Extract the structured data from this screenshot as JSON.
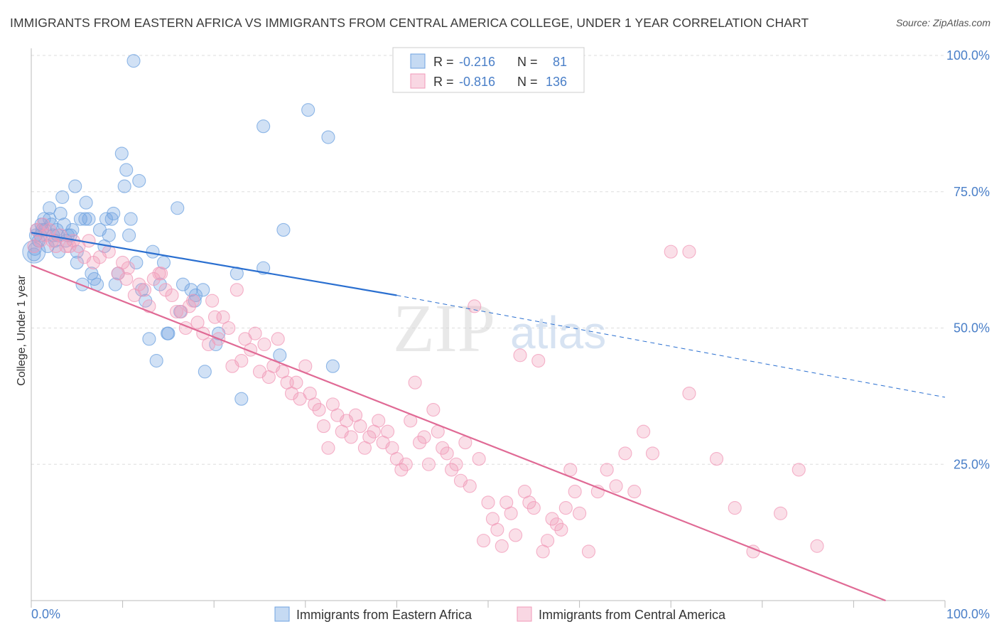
{
  "title": "IMMIGRANTS FROM EASTERN AFRICA VS IMMIGRANTS FROM CENTRAL AMERICA COLLEGE, UNDER 1 YEAR CORRELATION CHART",
  "source": "Source: ZipAtlas.com",
  "watermark": {
    "zip": "ZIP",
    "atlas": "atlas"
  },
  "colors": {
    "blue": "#6fa3e0",
    "blue_line": "#2a6fd0",
    "pink": "#f19ab8",
    "pink_line": "#e06a95",
    "tick_text": "#4a7fc8",
    "grid": "#dddddd"
  },
  "chart_data": {
    "type": "scatter",
    "xlabel": "",
    "ylabel": "College, Under 1 year",
    "xlim": [
      0,
      100
    ],
    "ylim": [
      0,
      100
    ],
    "x_tick_labels": [
      "0.0%",
      "100.0%"
    ],
    "y_ticks": [
      25,
      50,
      75,
      100
    ],
    "y_tick_labels": [
      "25.0%",
      "50.0%",
      "75.0%",
      "100.0%"
    ],
    "grid": true,
    "legend_position": "top-center",
    "legend": [
      {
        "r_label": "R =",
        "r": "-0.216",
        "n_label": "N =",
        "n": "81"
      },
      {
        "r_label": "R =",
        "r": "-0.816",
        "n_label": "N =",
        "n": "136"
      }
    ],
    "series": [
      {
        "name": "Immigrants from Eastern Africa",
        "color": "#6fa3e0",
        "regression": {
          "x0": 0,
          "y0": 67.5,
          "x1": 40,
          "y1": 56.0,
          "dashed_to_x": 100,
          "dashed_to_y": 37.3
        },
        "points": [
          [
            0.3,
            63.5
          ],
          [
            0.4,
            64.5
          ],
          [
            0.5,
            67
          ],
          [
            0.6,
            68
          ],
          [
            0.8,
            66
          ],
          [
            1,
            67
          ],
          [
            1.2,
            68
          ],
          [
            1.4,
            70
          ],
          [
            1.5,
            68
          ],
          [
            1.8,
            65
          ],
          [
            2,
            70
          ],
          [
            2,
            72
          ],
          [
            2.2,
            69
          ],
          [
            2.4,
            67
          ],
          [
            2.6,
            66
          ],
          [
            2.8,
            68
          ],
          [
            3,
            64
          ],
          [
            3.2,
            71
          ],
          [
            3.4,
            74
          ],
          [
            3.6,
            69
          ],
          [
            3.8,
            66
          ],
          [
            4,
            67
          ],
          [
            4.3,
            67
          ],
          [
            4.5,
            68
          ],
          [
            4.8,
            76
          ],
          [
            5,
            64
          ],
          [
            5,
            62
          ],
          [
            5.4,
            70
          ],
          [
            5.6,
            58
          ],
          [
            5.9,
            70
          ],
          [
            6,
            73
          ],
          [
            6.3,
            70
          ],
          [
            6.6,
            60
          ],
          [
            6.9,
            59
          ],
          [
            7.2,
            58
          ],
          [
            7.5,
            68
          ],
          [
            8,
            65
          ],
          [
            8.2,
            70
          ],
          [
            8.5,
            67
          ],
          [
            8.8,
            70
          ],
          [
            9,
            71
          ],
          [
            9.2,
            58
          ],
          [
            9.5,
            60
          ],
          [
            9.9,
            82
          ],
          [
            10.2,
            76
          ],
          [
            10.4,
            79
          ],
          [
            10.7,
            67
          ],
          [
            10.9,
            70
          ],
          [
            11.2,
            99
          ],
          [
            11.5,
            62
          ],
          [
            11.8,
            77
          ],
          [
            12.1,
            57
          ],
          [
            12.5,
            55
          ],
          [
            12.9,
            48
          ],
          [
            13.3,
            64
          ],
          [
            13.7,
            44
          ],
          [
            14.1,
            58
          ],
          [
            14.5,
            62
          ],
          [
            14.9,
            49
          ],
          [
            15,
            49
          ],
          [
            16,
            72
          ],
          [
            16.3,
            53
          ],
          [
            16.6,
            58
          ],
          [
            17.5,
            57
          ],
          [
            17.9,
            55
          ],
          [
            18,
            56
          ],
          [
            18.8,
            57
          ],
          [
            19,
            42
          ],
          [
            20.2,
            47
          ],
          [
            20.5,
            49
          ],
          [
            22.5,
            60
          ],
          [
            23,
            37
          ],
          [
            25.4,
            61
          ],
          [
            25.4,
            87
          ],
          [
            27.2,
            45
          ],
          [
            27.6,
            68
          ],
          [
            30.3,
            90
          ],
          [
            32.5,
            85
          ],
          [
            33,
            43
          ],
          [
            1.1,
            69
          ],
          [
            2.9,
            67
          ]
        ]
      },
      {
        "name": "Immigrants from Central America",
        "color": "#f19ab8",
        "regression": {
          "x0": 0,
          "y0": 61.5,
          "x1": 93.5,
          "y1": 0
        },
        "points": [
          [
            0.3,
            65
          ],
          [
            0.6,
            68
          ],
          [
            1,
            66
          ],
          [
            1.3,
            69
          ],
          [
            1.6,
            67
          ],
          [
            2,
            68
          ],
          [
            2.3,
            66
          ],
          [
            2.7,
            65
          ],
          [
            3.2,
            67
          ],
          [
            3.8,
            65
          ],
          [
            4.2,
            65
          ],
          [
            4.6,
            66
          ],
          [
            5.2,
            65
          ],
          [
            5.8,
            63
          ],
          [
            6.3,
            66
          ],
          [
            6.8,
            62
          ],
          [
            7.5,
            63
          ],
          [
            8.5,
            64
          ],
          [
            9.5,
            60
          ],
          [
            10,
            62
          ],
          [
            10.4,
            59
          ],
          [
            10.6,
            61
          ],
          [
            11.3,
            56
          ],
          [
            11.8,
            58
          ],
          [
            12.4,
            57
          ],
          [
            12.9,
            54
          ],
          [
            13.4,
            59
          ],
          [
            14,
            60
          ],
          [
            14.2,
            60
          ],
          [
            14.7,
            57
          ],
          [
            15.4,
            56
          ],
          [
            15.9,
            53
          ],
          [
            16.4,
            53
          ],
          [
            16.9,
            50
          ],
          [
            17.3,
            54
          ],
          [
            17.7,
            55
          ],
          [
            18.2,
            51
          ],
          [
            18.8,
            49
          ],
          [
            19.4,
            47
          ],
          [
            19.8,
            55
          ],
          [
            20.1,
            52
          ],
          [
            20.5,
            48
          ],
          [
            21,
            52
          ],
          [
            21.6,
            50
          ],
          [
            22,
            43
          ],
          [
            22.5,
            57
          ],
          [
            23,
            44
          ],
          [
            23.4,
            48
          ],
          [
            24,
            46
          ],
          [
            24.5,
            49
          ],
          [
            25,
            42
          ],
          [
            25.5,
            47
          ],
          [
            26,
            41
          ],
          [
            26.5,
            43
          ],
          [
            27,
            48
          ],
          [
            27.5,
            42
          ],
          [
            28,
            40
          ],
          [
            28.5,
            38
          ],
          [
            29,
            40
          ],
          [
            29.4,
            37
          ],
          [
            30,
            43
          ],
          [
            30.5,
            38
          ],
          [
            31,
            36
          ],
          [
            31.5,
            35
          ],
          [
            32,
            32
          ],
          [
            32.5,
            28
          ],
          [
            33,
            36
          ],
          [
            33.5,
            34
          ],
          [
            34,
            31
          ],
          [
            34.5,
            33
          ],
          [
            35,
            30
          ],
          [
            35.5,
            34
          ],
          [
            36,
            32
          ],
          [
            36.5,
            28
          ],
          [
            37,
            30
          ],
          [
            37.5,
            31
          ],
          [
            38,
            33
          ],
          [
            38.5,
            29
          ],
          [
            39,
            31
          ],
          [
            39.5,
            28
          ],
          [
            40,
            26
          ],
          [
            40.5,
            24
          ],
          [
            41,
            25
          ],
          [
            41.5,
            33
          ],
          [
            42,
            40
          ],
          [
            42.5,
            29
          ],
          [
            43,
            30
          ],
          [
            43.5,
            25
          ],
          [
            44,
            35
          ],
          [
            44.5,
            31
          ],
          [
            45,
            28
          ],
          [
            45.5,
            27
          ],
          [
            46,
            24
          ],
          [
            46.5,
            25
          ],
          [
            47,
            22
          ],
          [
            47.5,
            29
          ],
          [
            48,
            21
          ],
          [
            48.5,
            54
          ],
          [
            49,
            26
          ],
          [
            49.5,
            11
          ],
          [
            50,
            18
          ],
          [
            50.5,
            15
          ],
          [
            51,
            13
          ],
          [
            51.5,
            10
          ],
          [
            52,
            18
          ],
          [
            52.5,
            16
          ],
          [
            53,
            12
          ],
          [
            53.5,
            45
          ],
          [
            54,
            20
          ],
          [
            54.5,
            18
          ],
          [
            55,
            17
          ],
          [
            55.5,
            44
          ],
          [
            56,
            9
          ],
          [
            56.5,
            11
          ],
          [
            57,
            15
          ],
          [
            57.5,
            14
          ],
          [
            58,
            13
          ],
          [
            58.5,
            17
          ],
          [
            59,
            24
          ],
          [
            59.5,
            20
          ],
          [
            60,
            16
          ],
          [
            61,
            9
          ],
          [
            62,
            20
          ],
          [
            63,
            24
          ],
          [
            64,
            21
          ],
          [
            65,
            27
          ],
          [
            66,
            20
          ],
          [
            67,
            31
          ],
          [
            68,
            27
          ],
          [
            70,
            64
          ],
          [
            72,
            64
          ],
          [
            72,
            38
          ],
          [
            75,
            26
          ],
          [
            77,
            17
          ],
          [
            79,
            9
          ],
          [
            82,
            16
          ],
          [
            84,
            24
          ],
          [
            86,
            10
          ]
        ]
      }
    ]
  }
}
